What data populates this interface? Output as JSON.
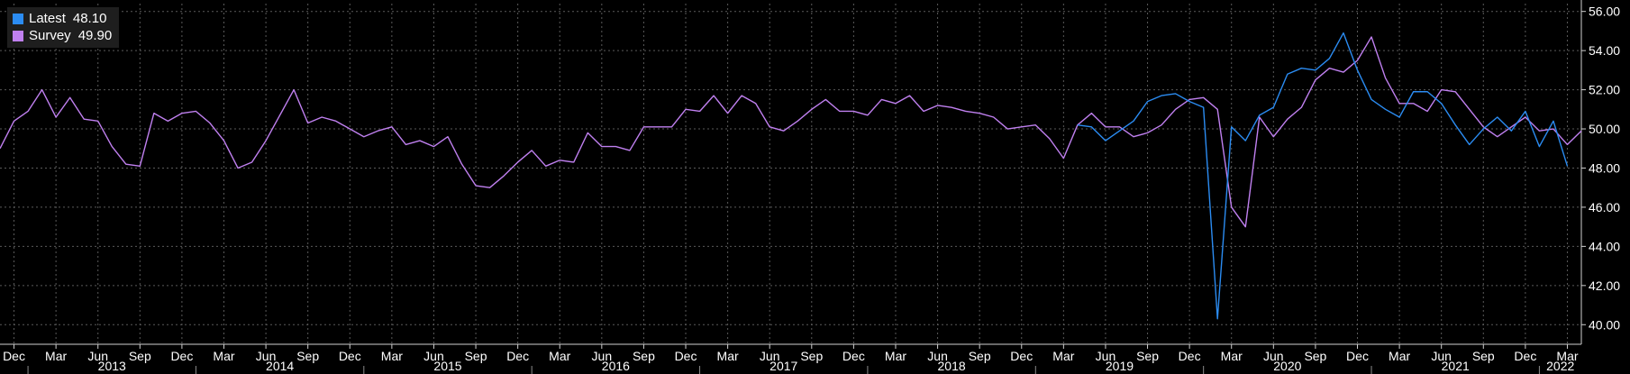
{
  "chart_data": {
    "type": "line",
    "title": "",
    "xlabel": "",
    "ylabel": "",
    "ylim": [
      39,
      56.4
    ],
    "xlim": [
      "2012-11",
      "2022-04"
    ],
    "grid": true,
    "legend_placement": "top-left",
    "y_ticks": [
      "40.00",
      "42.00",
      "44.00",
      "46.00",
      "48.00",
      "50.00",
      "52.00",
      "54.00",
      "56.00"
    ],
    "month_ticks": [
      {
        "label": "Dec",
        "date": "2012-12"
      },
      {
        "label": "Mar",
        "date": "2013-03"
      },
      {
        "label": "Jun",
        "date": "2013-06"
      },
      {
        "label": "Sep",
        "date": "2013-09"
      },
      {
        "label": "Dec",
        "date": "2013-12"
      },
      {
        "label": "Mar",
        "date": "2014-03"
      },
      {
        "label": "Jun",
        "date": "2014-06"
      },
      {
        "label": "Sep",
        "date": "2014-09"
      },
      {
        "label": "Dec",
        "date": "2014-12"
      },
      {
        "label": "Mar",
        "date": "2015-03"
      },
      {
        "label": "Jun",
        "date": "2015-06"
      },
      {
        "label": "Sep",
        "date": "2015-09"
      },
      {
        "label": "Dec",
        "date": "2015-12"
      },
      {
        "label": "Mar",
        "date": "2016-03"
      },
      {
        "label": "Jun",
        "date": "2016-06"
      },
      {
        "label": "Sep",
        "date": "2016-09"
      },
      {
        "label": "Dec",
        "date": "2016-12"
      },
      {
        "label": "Mar",
        "date": "2017-03"
      },
      {
        "label": "Jun",
        "date": "2017-06"
      },
      {
        "label": "Sep",
        "date": "2017-09"
      },
      {
        "label": "Dec",
        "date": "2017-12"
      },
      {
        "label": "Mar",
        "date": "2018-03"
      },
      {
        "label": "Jun",
        "date": "2018-06"
      },
      {
        "label": "Sep",
        "date": "2018-09"
      },
      {
        "label": "Dec",
        "date": "2018-12"
      },
      {
        "label": "Mar",
        "date": "2019-03"
      },
      {
        "label": "Jun",
        "date": "2019-06"
      },
      {
        "label": "Sep",
        "date": "2019-09"
      },
      {
        "label": "Dec",
        "date": "2019-12"
      },
      {
        "label": "Mar",
        "date": "2020-03"
      },
      {
        "label": "Jun",
        "date": "2020-06"
      },
      {
        "label": "Sep",
        "date": "2020-09"
      },
      {
        "label": "Dec",
        "date": "2020-12"
      },
      {
        "label": "Mar",
        "date": "2021-03"
      },
      {
        "label": "Jun",
        "date": "2021-06"
      },
      {
        "label": "Sep",
        "date": "2021-09"
      },
      {
        "label": "Dec",
        "date": "2021-12"
      },
      {
        "label": "Mar",
        "date": "2022-03"
      }
    ],
    "year_ticks": [
      {
        "label": "2013",
        "year": 2013
      },
      {
        "label": "2014",
        "year": 2014
      },
      {
        "label": "2015",
        "year": 2015
      },
      {
        "label": "2016",
        "year": 2016
      },
      {
        "label": "2017",
        "year": 2017
      },
      {
        "label": "2018",
        "year": 2018
      },
      {
        "label": "2019",
        "year": 2019
      },
      {
        "label": "2020",
        "year": 2020
      },
      {
        "label": "2021",
        "year": 2021
      },
      {
        "label": "2022",
        "year": 2022
      }
    ],
    "series": [
      {
        "name": "Survey",
        "color": "#c080f0",
        "latest_label": "49.90",
        "start": "2012-11",
        "values": [
          49.0,
          50.4,
          50.9,
          52.0,
          50.6,
          51.6,
          50.5,
          50.4,
          49.1,
          48.2,
          48.1,
          50.8,
          50.4,
          50.8,
          50.9,
          50.3,
          49.4,
          48.0,
          48.3,
          49.4,
          50.7,
          52.0,
          50.3,
          50.6,
          50.4,
          50.0,
          49.6,
          49.9,
          50.1,
          49.2,
          49.4,
          49.1,
          49.6,
          48.2,
          47.1,
          47.0,
          47.6,
          48.3,
          48.9,
          48.1,
          48.4,
          48.3,
          49.8,
          49.1,
          49.1,
          48.9,
          50.1,
          50.1,
          50.1,
          51.0,
          50.9,
          51.7,
          50.8,
          51.7,
          51.3,
          50.1,
          49.9,
          50.4,
          51.0,
          51.5,
          50.9,
          50.9,
          50.7,
          51.5,
          51.3,
          51.7,
          50.9,
          51.2,
          51.1,
          50.9,
          50.8,
          50.6,
          50.0,
          50.1,
          50.2,
          49.5,
          48.5,
          50.2,
          50.8,
          50.1,
          50.1,
          49.6,
          49.8,
          50.2,
          51.0,
          51.5,
          51.6,
          51.0,
          46.0,
          45.0,
          50.6,
          49.6,
          50.5,
          51.1,
          52.5,
          53.1,
          52.9,
          53.5,
          54.7,
          52.6,
          51.3,
          51.3,
          50.9,
          52.0,
          51.9,
          51.0,
          50.1,
          49.6,
          50.1,
          50.6,
          49.9,
          50.0,
          49.2,
          49.9
        ]
      },
      {
        "name": "Latest",
        "color": "#2b8cf2",
        "latest_label": "48.10",
        "start": "2019-04",
        "values": [
          50.2,
          50.1,
          49.4,
          49.9,
          50.4,
          51.4,
          51.7,
          51.8,
          51.4,
          51.1,
          40.3,
          50.1,
          49.4,
          50.7,
          51.1,
          52.8,
          53.1,
          53.0,
          53.6,
          54.9,
          53.0,
          51.5,
          51.0,
          50.6,
          51.9,
          51.9,
          51.3,
          50.2,
          49.2,
          50.0,
          50.6,
          49.9,
          50.9,
          49.1,
          50.4,
          48.1
        ]
      }
    ]
  }
}
